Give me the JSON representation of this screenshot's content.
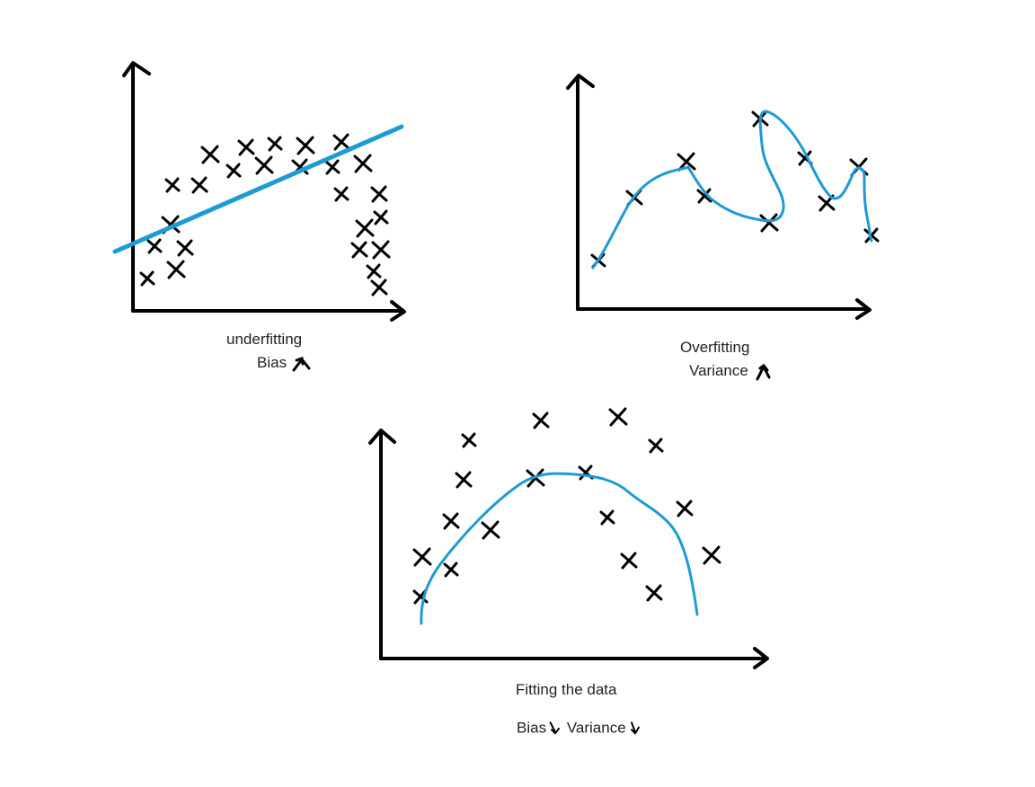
{
  "panels": {
    "underfitting": {
      "title": "underfitting",
      "subtitle": "Bias",
      "subtitle_arrow": "up"
    },
    "overfitting": {
      "title": "Overfitting",
      "subtitle": "Variance",
      "subtitle_arrow": "up"
    },
    "good_fit": {
      "title": "Fitting the data",
      "bias_label": "Bias",
      "bias_arrow": "down",
      "variance_label": "Variance",
      "variance_arrow": "down"
    }
  },
  "colors": {
    "axis": "#000000",
    "marker": "#000000",
    "fit_line": "#1e9ad6",
    "text": "#222222"
  }
}
